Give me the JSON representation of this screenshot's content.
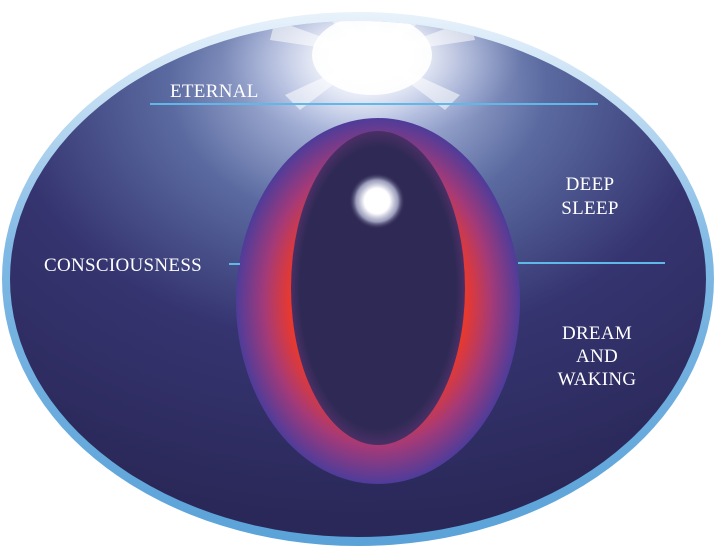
{
  "labels": {
    "eternal": "ETERNAL",
    "consciousness": "CONSCIOUSNESS",
    "deep_sleep_line1": "DEEP",
    "deep_sleep_line2": "SLEEP",
    "dream_line1": "DREAM",
    "dream_line2": "AND",
    "dream_line3": "WAKING"
  },
  "colors": {
    "outer_rim": "#6fb0e0",
    "background_dark": "#2e2a5c",
    "background_light": "#5a6aa0",
    "ring_red": "#e8392f",
    "ring_purple": "#5a3a9a",
    "inner_core": "#2f2a55",
    "divider_line": "#5fb8e8",
    "text": "#ffffff"
  }
}
